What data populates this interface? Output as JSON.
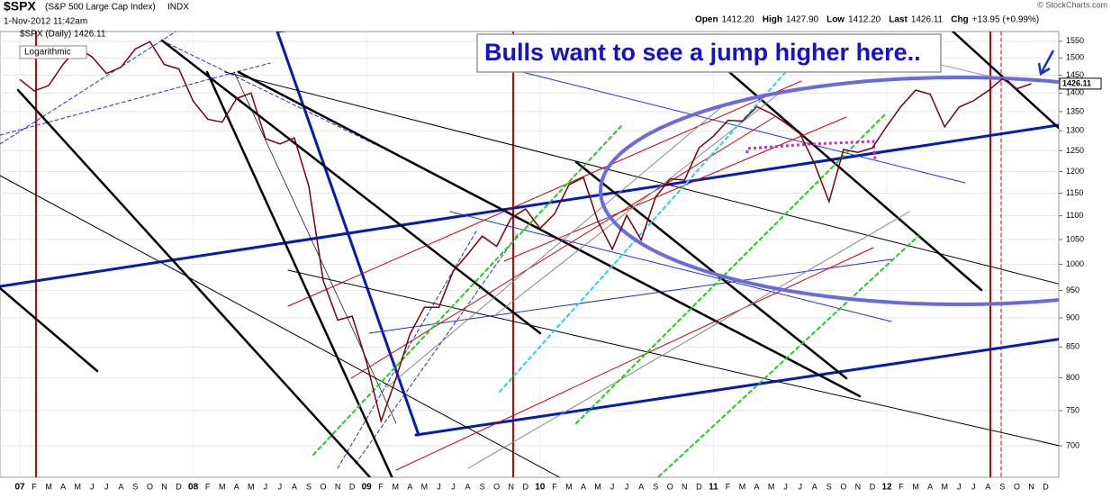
{
  "chart_data": {
    "type": "line",
    "title": "$SPX",
    "subtitle": "(S&P 500 Large Cap Index)",
    "exchange": "INDX",
    "timestamp": "1-Nov-2012 11:42am",
    "copyright": "© StockCharts.com",
    "quote": [
      {
        "label": "Open",
        "value": "1412.20"
      },
      {
        "label": "High",
        "value": "1427.90"
      },
      {
        "label": "Low",
        "value": "1412.20"
      },
      {
        "label": "Last",
        "value": "1426.11"
      },
      {
        "label": "Chg",
        "value": "+13.95 (+0.99%)"
      }
    ],
    "scale_label": "Logarithmic",
    "annotation": "Bulls want to see a jump higher here..",
    "last_price": 1426.11,
    "log_scale": true,
    "grid": true,
    "categories": [
      "07",
      "F",
      "M",
      "A",
      "M",
      "J",
      "J",
      "A",
      "S",
      "O",
      "N",
      "D",
      "08",
      "F",
      "M",
      "A",
      "M",
      "J",
      "J",
      "A",
      "S",
      "O",
      "N",
      "D",
      "09",
      "F",
      "M",
      "A",
      "M",
      "J",
      "J",
      "A",
      "S",
      "O",
      "N",
      "D",
      "10",
      "F",
      "M",
      "A",
      "M",
      "J",
      "J",
      "A",
      "S",
      "O",
      "N",
      "D",
      "11",
      "F",
      "M",
      "A",
      "M",
      "J",
      "J",
      "A",
      "S",
      "O",
      "N",
      "D",
      "12",
      "F",
      "M",
      "A",
      "M",
      "J",
      "J",
      "A",
      "S",
      "O",
      "N",
      "D"
    ],
    "series": [
      {
        "name": "$SPX (Daily) 1426.11",
        "color": "#7a0010",
        "values": [
          1438,
          1406,
          1421,
          1482,
          1530,
          1503,
          1455,
          1473,
          1527,
          1549,
          1481,
          1468,
          1378,
          1330,
          1322,
          1385,
          1400,
          1280,
          1267,
          1282,
          1166,
          968,
          896,
          903,
          825,
          735,
          797,
          872,
          919,
          919,
          987,
          1020,
          1057,
          1036,
          1095,
          1115,
          1073,
          1104,
          1169,
          1186,
          1089,
          1030,
          1101,
          1049,
          1141,
          1183,
          1180,
          1257,
          1286,
          1327,
          1325,
          1363,
          1345,
          1320,
          1292,
          1218,
          1131,
          1253,
          1246,
          1257,
          1312,
          1365,
          1408,
          1397,
          1310,
          1362,
          1379,
          1406,
          1440,
          1412,
          1426,
          null
        ]
      }
    ],
    "ylim": [
      658,
      1580
    ],
    "yticks": [
      700,
      750,
      800,
      850,
      900,
      950,
      1000,
      1050,
      1100,
      1150,
      1200,
      1250,
      1300,
      1350,
      1400,
      1450,
      1500,
      1550
    ]
  }
}
